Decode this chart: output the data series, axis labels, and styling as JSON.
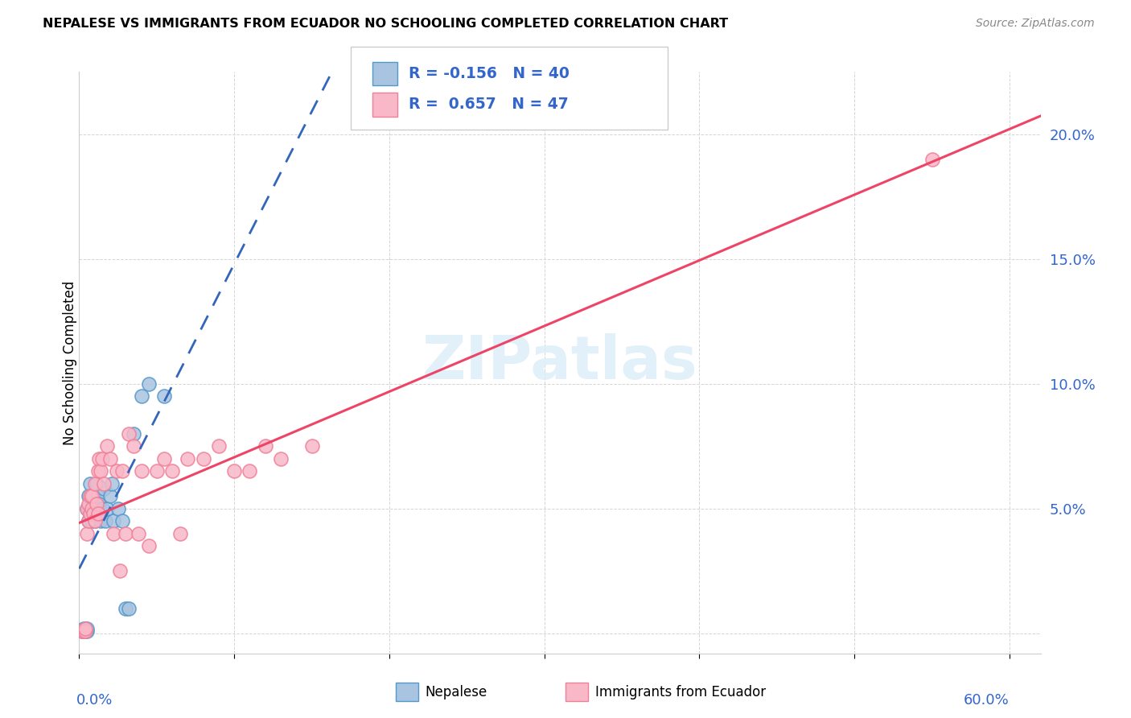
{
  "title": "NEPALESE VS IMMIGRANTS FROM ECUADOR NO SCHOOLING COMPLETED CORRELATION CHART",
  "source": "Source: ZipAtlas.com",
  "ylabel": "No Schooling Completed",
  "xlim": [
    0.0,
    0.62
  ],
  "ylim": [
    -0.008,
    0.225
  ],
  "yticks": [
    0.0,
    0.05,
    0.1,
    0.15,
    0.2
  ],
  "xticks": [
    0.0,
    0.1,
    0.2,
    0.3,
    0.4,
    0.5,
    0.6
  ],
  "blue_fill": "#a8c4e0",
  "blue_edge": "#5599cc",
  "pink_fill": "#f9b8c8",
  "pink_edge": "#f08098",
  "blue_line": "#3366bb",
  "pink_line": "#ee4466",
  "axis_label_color": "#3366cc",
  "grid_color": "#d5d5d5",
  "r_blue": "-0.156",
  "n_blue": "40",
  "r_pink": "0.657",
  "n_pink": "47",
  "watermark_color": "#ddeef8",
  "nepalese_x": [
    0.002,
    0.003,
    0.003,
    0.004,
    0.004,
    0.005,
    0.005,
    0.005,
    0.006,
    0.006,
    0.006,
    0.007,
    0.007,
    0.007,
    0.008,
    0.008,
    0.009,
    0.009,
    0.01,
    0.01,
    0.011,
    0.011,
    0.012,
    0.013,
    0.014,
    0.015,
    0.016,
    0.017,
    0.018,
    0.02,
    0.021,
    0.022,
    0.025,
    0.028,
    0.03,
    0.032,
    0.035,
    0.04,
    0.045,
    0.055
  ],
  "nepalese_y": [
    0.001,
    0.001,
    0.002,
    0.001,
    0.002,
    0.001,
    0.002,
    0.05,
    0.045,
    0.05,
    0.055,
    0.048,
    0.052,
    0.06,
    0.05,
    0.045,
    0.055,
    0.048,
    0.052,
    0.045,
    0.05,
    0.06,
    0.055,
    0.052,
    0.045,
    0.05,
    0.058,
    0.045,
    0.05,
    0.055,
    0.06,
    0.045,
    0.05,
    0.045,
    0.01,
    0.01,
    0.08,
    0.095,
    0.1,
    0.095
  ],
  "ecuador_x": [
    0.002,
    0.003,
    0.004,
    0.004,
    0.005,
    0.005,
    0.006,
    0.006,
    0.007,
    0.007,
    0.008,
    0.008,
    0.009,
    0.01,
    0.01,
    0.011,
    0.012,
    0.012,
    0.013,
    0.014,
    0.015,
    0.016,
    0.018,
    0.02,
    0.022,
    0.024,
    0.026,
    0.028,
    0.03,
    0.032,
    0.035,
    0.038,
    0.04,
    0.045,
    0.05,
    0.055,
    0.06,
    0.065,
    0.07,
    0.08,
    0.09,
    0.1,
    0.11,
    0.12,
    0.13,
    0.15,
    0.55
  ],
  "ecuador_y": [
    0.001,
    0.001,
    0.001,
    0.002,
    0.04,
    0.05,
    0.045,
    0.052,
    0.048,
    0.055,
    0.05,
    0.055,
    0.048,
    0.06,
    0.045,
    0.052,
    0.065,
    0.048,
    0.07,
    0.065,
    0.07,
    0.06,
    0.075,
    0.07,
    0.04,
    0.065,
    0.025,
    0.065,
    0.04,
    0.08,
    0.075,
    0.04,
    0.065,
    0.035,
    0.065,
    0.07,
    0.065,
    0.04,
    0.07,
    0.07,
    0.075,
    0.065,
    0.065,
    0.075,
    0.07,
    0.075,
    0.19
  ]
}
